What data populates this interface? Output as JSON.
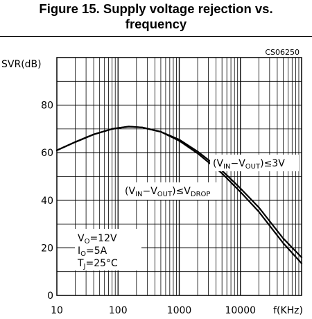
{
  "figure": {
    "title_line1": "Figure 15. Supply voltage rejection vs.",
    "title_line2": "frequency"
  },
  "chart_data": {
    "type": "line",
    "code": "CS06250",
    "ylabel": "SVR(dB)",
    "xlabel": "f(KHz)",
    "x_scale": "log",
    "xlim": [
      10,
      100000
    ],
    "ylim": [
      0,
      100
    ],
    "x_ticks": [
      "10",
      "100",
      "1000",
      "10000"
    ],
    "y_ticks": [
      "0",
      "20",
      "40",
      "60",
      "80"
    ],
    "grid": true,
    "series": [
      {
        "name": "(VIN−VOUT)≤3V",
        "x": [
          10,
          20,
          40,
          80,
          150,
          250,
          500,
          1000,
          2000,
          5000,
          10000,
          20000,
          50000,
          100000
        ],
        "y": [
          61,
          64.5,
          67.7,
          70,
          71,
          70.6,
          68.8,
          65.5,
          60.5,
          52.5,
          45,
          37,
          24,
          16
        ]
      },
      {
        "name": "(VIN−VOUT)≤VDROP",
        "x": [
          10,
          20,
          40,
          80,
          150,
          250,
          500,
          1000,
          2000,
          5000,
          10000,
          20000,
          50000,
          100000
        ],
        "y": [
          61,
          64.5,
          67.7,
          70,
          71,
          70.6,
          68.8,
          65,
          59.7,
          51.3,
          43.5,
          35.2,
          22,
          13.5
        ]
      }
    ],
    "annotations": {
      "label_3v": {
        "pre": "(V",
        "sub1": "IN",
        "mid": "−V",
        "sub2": "OUT",
        "post": ")≤3V"
      },
      "label_drop": {
        "pre": "(V",
        "sub1": "IN",
        "mid": "−V",
        "sub2": "OUT",
        "post": ")≤V",
        "sub3": "DROP"
      },
      "conditions": [
        {
          "main": "V",
          "sub": "O",
          "rest": "=12V"
        },
        {
          "main": "I",
          "sub": "O",
          "rest": "=5A"
        },
        {
          "main": "T",
          "sub": "J",
          "rest": "=25°C"
        }
      ]
    }
  }
}
